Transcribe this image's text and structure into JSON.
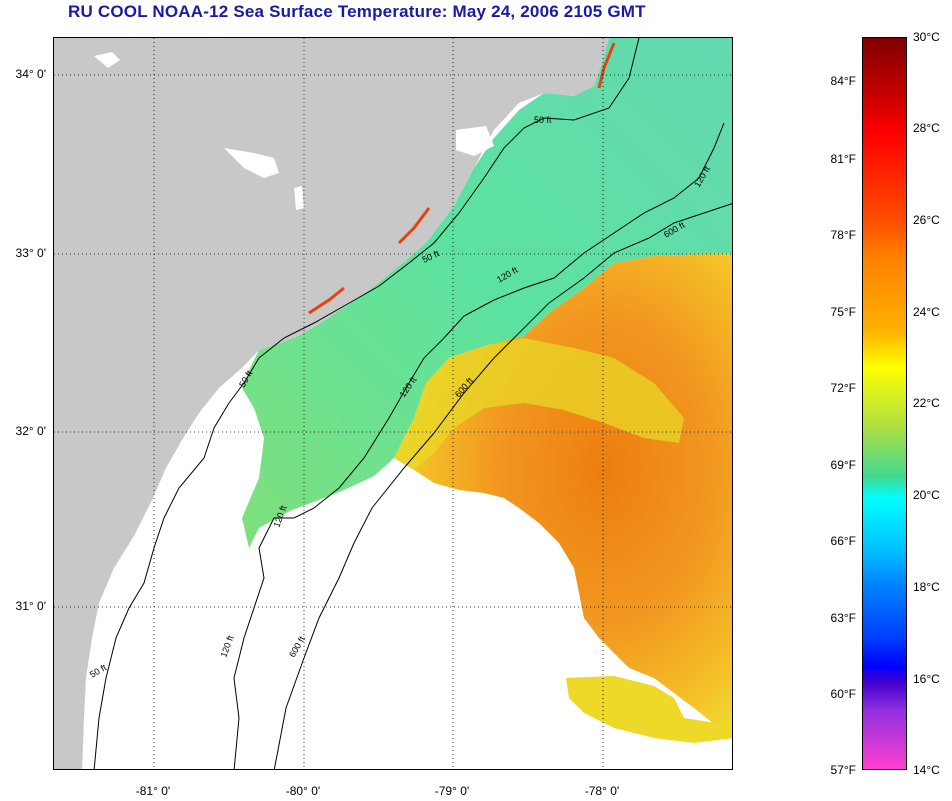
{
  "title": "RU COOL  NOAA-12  Sea Surface Temperature:  May 24, 2006 2105 GMT",
  "map": {
    "latitude_labels": [
      "34° 0'",
      "33° 0'",
      "32° 0'",
      "31° 0'"
    ],
    "longitude_labels": [
      "-81° 0'",
      "-80° 0'",
      "-79° 0'",
      "-78° 0'"
    ],
    "depth_contour_labels": [
      "50 ft",
      "120 ft",
      "600 ft"
    ],
    "colors": {
      "land": "#c8c8c8",
      "cloud_mask": "#ffffff",
      "coastal_water": "#5ee0a8",
      "warm_water": "#f08a18",
      "mid_water": "#e8d828"
    }
  },
  "colorbar": {
    "fahrenheit_labels": [
      "84°F",
      "81°F",
      "78°F",
      "75°F",
      "72°F",
      "69°F",
      "66°F",
      "63°F",
      "60°F",
      "57°F"
    ],
    "celsius_labels": [
      "30°C",
      "28°C",
      "26°C",
      "24°C",
      "22°C",
      "20°C",
      "18°C",
      "16°C",
      "14°C"
    ],
    "range_celsius": [
      14,
      30
    ],
    "range_fahrenheit": [
      57,
      86
    ]
  }
}
